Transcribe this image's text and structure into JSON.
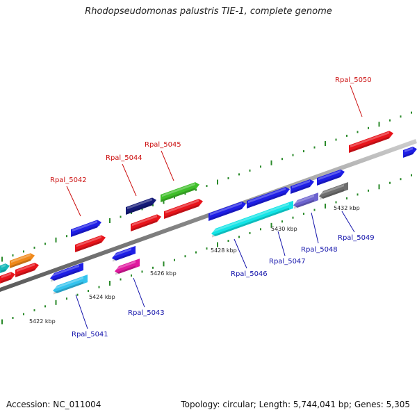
{
  "title": "Rhodopseudomonas palustris TIE-1, complete genome",
  "footer": {
    "accession": "Accession: NC_011004",
    "summary": "Topology: circular; Length: 5,744,041 bp; Genes: 5,305"
  },
  "ticks": [
    {
      "label": "5422 kbp"
    },
    {
      "label": "5424 kbp"
    },
    {
      "label": "5426 kbp"
    },
    {
      "label": "5428 kbp"
    },
    {
      "label": "5430 kbp"
    },
    {
      "label": "5432 kbp"
    }
  ],
  "genes": [
    {
      "name": "Rpal_5041",
      "strand": "reverse",
      "color": "#1a87c9"
    },
    {
      "name": "Rpal_5042",
      "strand": "forward",
      "color": "#e8141b"
    },
    {
      "name": "Rpal_5043",
      "strand": "reverse",
      "color": "#e0189e"
    },
    {
      "name": "Rpal_5044",
      "strand": "forward",
      "color": "#141a78"
    },
    {
      "name": "Rpal_5045",
      "strand": "forward",
      "color": "#3fbf2a"
    },
    {
      "name": "Rpal_5046",
      "strand": "reverse",
      "color": "#12e4e6"
    },
    {
      "name": "Rpal_5047",
      "strand": "reverse",
      "color": "#1717c8"
    },
    {
      "name": "Rpal_5048",
      "strand": "reverse",
      "color": "#6d63cf"
    },
    {
      "name": "Rpal_5049",
      "strand": "reverse",
      "color": "#6e6e6e"
    },
    {
      "name": "Rpal_5050",
      "strand": "forward",
      "color": "#e8141b"
    }
  ],
  "colors": {
    "forward_label": "#cc1111",
    "reverse_label": "#1111aa",
    "backbone": "#8a8a8a",
    "tick": "#2a8a2a"
  }
}
